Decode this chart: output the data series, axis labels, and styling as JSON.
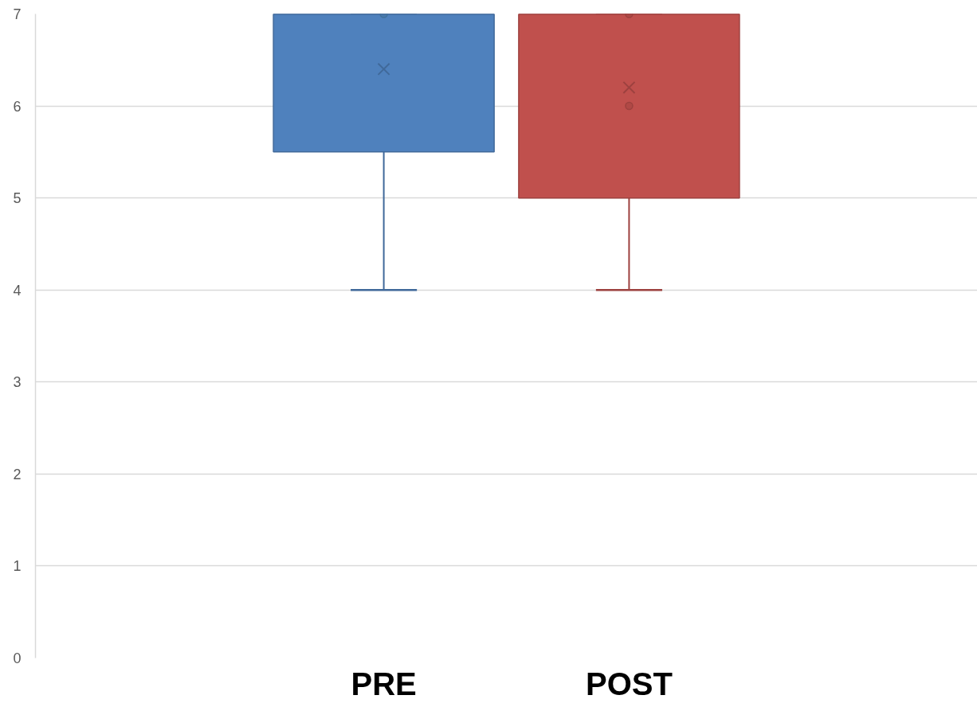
{
  "chart_data": {
    "type": "box",
    "categories": [
      "PRE",
      "POST"
    ],
    "boxes": [
      {
        "low": 4,
        "q1": 5.5,
        "median": 7,
        "q3": 7,
        "high": 7,
        "mean": 6.4
      },
      {
        "low": 4,
        "q1": 5,
        "median": 7,
        "q3": 7,
        "high": 7,
        "mean": 6.2
      }
    ],
    "colors": [
      "#4f81bd",
      "#c0504d"
    ],
    "series": [
      {
        "type": "scatter",
        "x": [
          "PRE",
          "POST",
          "POST"
        ],
        "values": [
          7,
          7,
          6
        ],
        "colors": [
          "#41719c",
          "#9e413e",
          "#9e413e"
        ]
      }
    ],
    "ylim": [
      0,
      7
    ],
    "yticks": [
      0,
      1,
      2,
      3,
      4,
      5,
      6,
      7
    ],
    "grid": "y",
    "marker": "circle"
  }
}
